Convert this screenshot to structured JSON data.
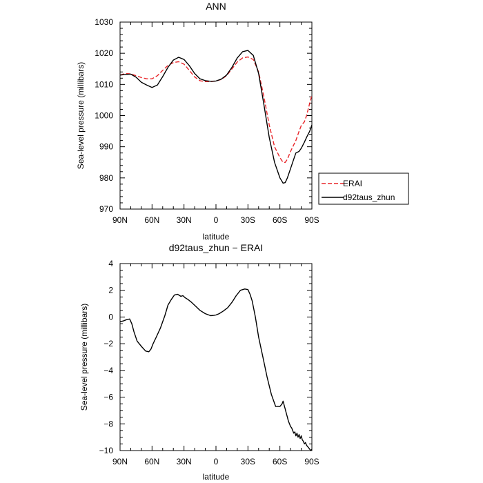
{
  "chart_data": [
    {
      "type": "line",
      "title": "ANN",
      "xlabel": "latitude",
      "ylabel": "Sea-level pressure (millibars)",
      "xlim": [
        90,
        -90
      ],
      "ylim": [
        970,
        1030
      ],
      "xticks": [
        90,
        60,
        30,
        0,
        -30,
        -60,
        -90
      ],
      "xtick_labels": [
        "90N",
        "60N",
        "30N",
        "0",
        "30S",
        "60S",
        "90S"
      ],
      "yticks": [
        970,
        980,
        990,
        1000,
        1010,
        1020,
        1030
      ],
      "ytick_labels": [
        "970",
        "980",
        "990",
        "1000",
        "1010",
        "1020",
        "1030"
      ],
      "legend_position": "right",
      "series": [
        {
          "name": "ERAI",
          "color": "#e8262a",
          "dash": "dashed",
          "x": [
            90,
            85,
            80,
            75,
            70,
            65,
            60,
            55,
            50,
            45,
            40,
            35,
            30,
            25,
            20,
            15,
            10,
            5,
            0,
            -5,
            -10,
            -15,
            -20,
            -25,
            -30,
            -35,
            -40,
            -45,
            -50,
            -55,
            -60,
            -63,
            -65,
            -67,
            -70,
            -75,
            -78,
            -80,
            -83,
            -85,
            -88,
            -90
          ],
          "y": [
            1013.0,
            1013.5,
            1013.4,
            1012.8,
            1012.2,
            1011.8,
            1011.8,
            1012.8,
            1014.5,
            1016.1,
            1017.0,
            1017.3,
            1016.5,
            1014.5,
            1012.4,
            1011.2,
            1010.9,
            1010.9,
            1011.1,
            1011.6,
            1012.8,
            1015.0,
            1017.2,
            1018.5,
            1018.8,
            1018.0,
            1014.0,
            1006.0,
            997.0,
            990.0,
            986.5,
            985.0,
            985.0,
            986.0,
            988.5,
            992.0,
            995.0,
            996.8,
            998.0,
            1000.0,
            1004.0,
            1006.5
          ]
        },
        {
          "name": "d92taus_zhun",
          "color": "#000000",
          "dash": "solid",
          "x": [
            90,
            85,
            80,
            75,
            70,
            65,
            60,
            55,
            50,
            45,
            40,
            35,
            30,
            25,
            20,
            15,
            10,
            5,
            0,
            -5,
            -10,
            -15,
            -20,
            -25,
            -30,
            -35,
            -40,
            -45,
            -50,
            -55,
            -60,
            -63,
            -65,
            -67,
            -70,
            -73,
            -75,
            -78,
            -80,
            -83,
            -85,
            -88,
            -90
          ],
          "y": [
            1013.0,
            1013.2,
            1013.3,
            1012.3,
            1010.7,
            1009.8,
            1009.0,
            1009.8,
            1012.5,
            1015.5,
            1017.8,
            1018.7,
            1018.0,
            1016.0,
            1013.5,
            1011.8,
            1011.2,
            1011.0,
            1011.1,
            1011.7,
            1013.0,
            1015.5,
            1018.5,
            1020.5,
            1020.9,
            1019.3,
            1013.5,
            1003.5,
            993.0,
            985.0,
            980.0,
            978.3,
            978.5,
            980.0,
            983.0,
            986.0,
            988.0,
            988.5,
            989.5,
            991.5,
            993.0,
            995.0,
            997.0
          ]
        }
      ]
    },
    {
      "type": "line",
      "title": "d92taus_zhun − ERAI",
      "xlabel": "latitude",
      "ylabel": "Sea-level pressure (millibars)",
      "xlim": [
        90,
        -90
      ],
      "ylim": [
        -10,
        4
      ],
      "xticks": [
        90,
        60,
        30,
        0,
        -30,
        -60,
        -90
      ],
      "xtick_labels": [
        "90N",
        "60N",
        "30N",
        "0",
        "30S",
        "60S",
        "90S"
      ],
      "yticks": [
        -10,
        -8,
        -6,
        -4,
        -2,
        0,
        2,
        4
      ],
      "ytick_labels": [
        "−10",
        "−8",
        "−6",
        "−4",
        "−2",
        "0",
        "2",
        "4"
      ],
      "series": [
        {
          "color": "#000000",
          "dash": "solid",
          "x": [
            90,
            87,
            84,
            81,
            79,
            77,
            74,
            70,
            66,
            63,
            61,
            59,
            56,
            52,
            48,
            45,
            42,
            39,
            36,
            33,
            31,
            29,
            26,
            23,
            19,
            15,
            10,
            5,
            2,
            0,
            -3,
            -7,
            -11,
            -15,
            -19,
            -23,
            -27,
            -30,
            -32,
            -34,
            -37,
            -40,
            -44,
            -48,
            -52,
            -56,
            -60,
            -62,
            -63,
            -64,
            -65,
            -66,
            -67,
            -68,
            -69,
            -70,
            -71,
            -72,
            -73,
            -74,
            -75,
            -76,
            -77,
            -78,
            -79,
            -80,
            -81,
            -82,
            -83,
            -84,
            -85,
            -86,
            -87,
            -88,
            -89,
            -90
          ],
          "y": [
            -0.35,
            -0.3,
            -0.2,
            -0.15,
            -0.5,
            -1.1,
            -1.8,
            -2.2,
            -2.55,
            -2.6,
            -2.4,
            -2.0,
            -1.5,
            -0.8,
            0.1,
            0.9,
            1.3,
            1.65,
            1.7,
            1.55,
            1.6,
            1.45,
            1.3,
            1.1,
            0.8,
            0.5,
            0.25,
            0.1,
            0.12,
            0.15,
            0.25,
            0.45,
            0.7,
            1.1,
            1.6,
            2.0,
            2.1,
            2.05,
            1.7,
            1.2,
            0.0,
            -1.5,
            -3.0,
            -4.5,
            -5.8,
            -6.7,
            -6.7,
            -6.5,
            -6.3,
            -6.6,
            -6.9,
            -7.2,
            -7.5,
            -7.8,
            -8.0,
            -8.2,
            -8.3,
            -8.5,
            -8.7,
            -8.6,
            -8.9,
            -8.7,
            -9.0,
            -8.8,
            -9.1,
            -8.9,
            -9.2,
            -9.3,
            -9.5,
            -9.4,
            -9.6,
            -9.7,
            -9.8,
            -9.9,
            -10.0,
            -9.9
          ]
        }
      ]
    }
  ]
}
